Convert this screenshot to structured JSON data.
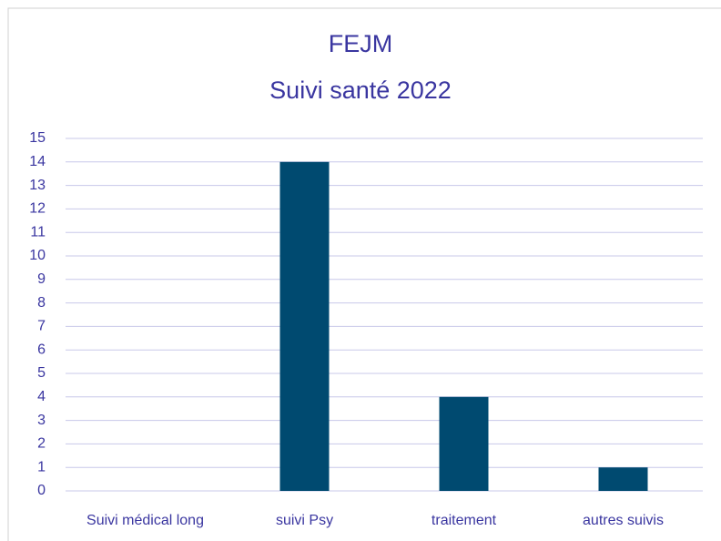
{
  "chart_data": {
    "type": "bar",
    "title": "FEJM",
    "subtitle": "Suivi santé 2022",
    "categories": [
      "Suivi médical long",
      "suivi Psy",
      "traitement",
      "autres suivis"
    ],
    "values": [
      0,
      14,
      4,
      1
    ],
    "color": "#004a70",
    "ylim": [
      0,
      15
    ],
    "yticks": [
      0,
      1,
      2,
      3,
      4,
      5,
      6,
      7,
      8,
      9,
      10,
      11,
      12,
      13,
      14,
      15
    ],
    "grid": true
  }
}
